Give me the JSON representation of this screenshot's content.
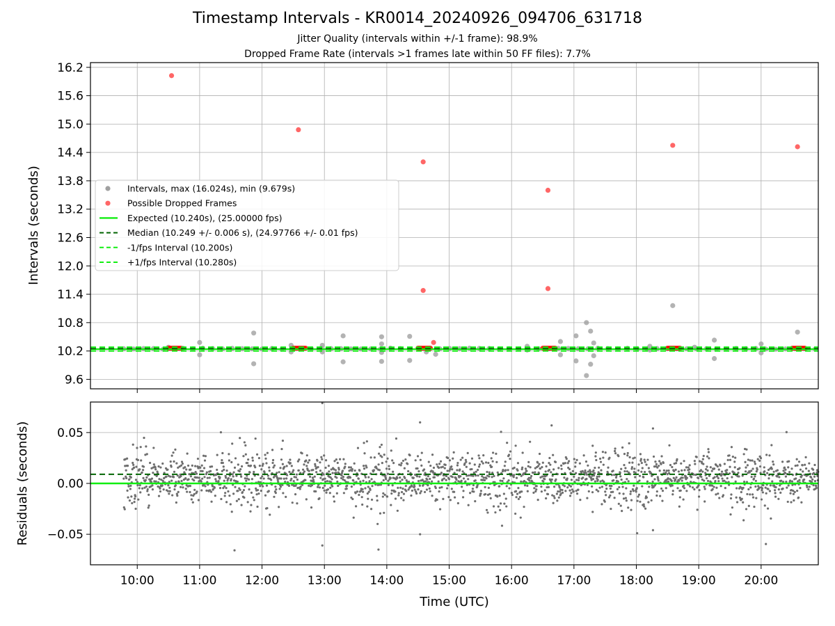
{
  "chart_data": [
    {
      "type": "scatter",
      "title": "Timestamp Intervals - KR0014_20240926_094706_631718",
      "subtitle_1": "Jitter Quality (intervals within +/-1 frame): 98.9%",
      "subtitle_2": "Dropped Frame Rate (intervals >1 frames late within 50 FF files): 7.7%",
      "xlabel": "",
      "ylabel": "Intervals (seconds)",
      "xlim": [
        "09:15",
        "20:55"
      ],
      "ylim": [
        9.4,
        16.3
      ],
      "y_ticks": [
        "9.6",
        "10.2",
        "10.8",
        "11.4",
        "12.0",
        "12.6",
        "13.2",
        "13.8",
        "14.4",
        "15.0",
        "15.6",
        "16.2"
      ],
      "grid": true,
      "legend_position": "center-left",
      "legend": [
        {
          "label": "Intervals, max (16.024s), min (9.679s)",
          "kind": "grey-marker"
        },
        {
          "label": "Possible Dropped Frames",
          "kind": "red-marker"
        },
        {
          "label": "Expected (10.240s), (25.00000 fps)",
          "kind": "green-solid"
        },
        {
          "label": "Median (10.249 +/- 0.006 s), (24.97766 +/- 0.01 fps)",
          "kind": "darkgreen-dashed"
        },
        {
          "label": "-1/fps Interval (10.200s)",
          "kind": "green-dashed"
        },
        {
          "label": "+1/fps Interval (10.280s)",
          "kind": "green-dashed"
        }
      ],
      "reference_lines": {
        "expected": 10.24,
        "median": 10.249,
        "minus_one_frame": 10.2,
        "plus_one_frame": 10.28
      },
      "series": [
        {
          "name": "Intervals, max (16.024s), min (9.679s)",
          "color": "#a0a0a0",
          "x_range": [
            "09:47",
            "20:55"
          ],
          "baseline": 10.249,
          "outliers": [
            {
              "x": "10:30",
              "y": 10.28
            },
            {
              "x": "11:00",
              "y": 10.38
            },
            {
              "x": "11:00",
              "y": 10.12
            },
            {
              "x": "11:52",
              "y": 10.58
            },
            {
              "x": "11:52",
              "y": 9.93
            },
            {
              "x": "12:28",
              "y": 10.32
            },
            {
              "x": "12:28",
              "y": 10.18
            },
            {
              "x": "12:58",
              "y": 10.32
            },
            {
              "x": "12:58",
              "y": 10.18
            },
            {
              "x": "13:18",
              "y": 10.52
            },
            {
              "x": "13:18",
              "y": 9.97
            },
            {
              "x": "13:55",
              "y": 10.5
            },
            {
              "x": "13:55",
              "y": 10.35
            },
            {
              "x": "13:55",
              "y": 10.17
            },
            {
              "x": "13:55",
              "y": 9.98
            },
            {
              "x": "14:22",
              "y": 10.51
            },
            {
              "x": "14:22",
              "y": 10.0
            },
            {
              "x": "14:38",
              "y": 10.18
            },
            {
              "x": "14:47",
              "y": 10.13
            },
            {
              "x": "16:15",
              "y": 10.3
            },
            {
              "x": "16:15",
              "y": 10.22
            },
            {
              "x": "16:47",
              "y": 10.4
            },
            {
              "x": "16:47",
              "y": 10.12
            },
            {
              "x": "17:02",
              "y": 10.52
            },
            {
              "x": "17:02",
              "y": 9.99
            },
            {
              "x": "17:12",
              "y": 10.8
            },
            {
              "x": "17:12",
              "y": 9.68
            },
            {
              "x": "17:16",
              "y": 10.62
            },
            {
              "x": "17:16",
              "y": 9.92
            },
            {
              "x": "17:19",
              "y": 10.37
            },
            {
              "x": "17:19",
              "y": 10.1
            },
            {
              "x": "18:13",
              "y": 10.3
            },
            {
              "x": "18:13",
              "y": 10.22
            },
            {
              "x": "18:35",
              "y": 11.16
            },
            {
              "x": "18:56",
              "y": 10.28
            },
            {
              "x": "19:15",
              "y": 10.43
            },
            {
              "x": "19:15",
              "y": 10.04
            },
            {
              "x": "20:00",
              "y": 10.35
            },
            {
              "x": "20:00",
              "y": 10.16
            },
            {
              "x": "20:35",
              "y": 10.6
            }
          ]
        },
        {
          "name": "Possible Dropped Frames",
          "color": "#ff0000",
          "x": [
            "10:33",
            "12:35",
            "14:35",
            "14:35",
            "14:45",
            "16:35",
            "16:35",
            "18:35",
            "20:35"
          ],
          "y": [
            16.024,
            14.88,
            14.2,
            11.48,
            10.38,
            13.6,
            11.52,
            14.55,
            14.52
          ],
          "clusters_at_baseline": [
            {
              "x_from": "10:30",
              "x_to": "10:43",
              "y": 10.26
            },
            {
              "x_from": "12:30",
              "x_to": "12:43",
              "y": 10.26
            },
            {
              "x_from": "14:30",
              "x_to": "14:43",
              "y": 10.26
            },
            {
              "x_from": "16:30",
              "x_to": "16:43",
              "y": 10.26
            },
            {
              "x_from": "18:30",
              "x_to": "18:43",
              "y": 10.26
            },
            {
              "x_from": "20:30",
              "x_to": "20:43",
              "y": 10.26
            }
          ]
        }
      ]
    },
    {
      "type": "scatter",
      "xlabel": "Time (UTC)",
      "ylabel": "Residuals (seconds)",
      "xlim": [
        "09:15",
        "20:55"
      ],
      "ylim": [
        -0.08,
        0.08
      ],
      "x_ticks": [
        "10:00",
        "11:00",
        "12:00",
        "13:00",
        "14:00",
        "15:00",
        "16:00",
        "17:00",
        "18:00",
        "19:00",
        "20:00"
      ],
      "y_ticks": [
        "−0.05",
        "0.00",
        "0.05"
      ],
      "y_tick_values": [
        -0.05,
        0.0,
        0.05
      ],
      "grid": true,
      "reference_lines": {
        "zero": 0.0,
        "median_offset": 0.009
      },
      "series": [
        {
          "name": "",
          "color": "#6e6e6e",
          "x_range": [
            "09:47",
            "20:55"
          ],
          "center": 0.005,
          "spread": 0.01,
          "outliers": [
            {
              "x": "12:20",
              "y": 0.042
            },
            {
              "x": "12:58",
              "y": 0.079
            },
            {
              "x": "12:58",
              "y": -0.061
            },
            {
              "x": "13:52",
              "y": -0.065
            },
            {
              "x": "14:32",
              "y": 0.06
            },
            {
              "x": "14:32",
              "y": -0.05
            },
            {
              "x": "18:16",
              "y": 0.054
            },
            {
              "x": "18:16",
              "y": -0.046
            },
            {
              "x": "13:55",
              "y": 0.038
            },
            {
              "x": "17:18",
              "y": 0.037
            },
            {
              "x": "17:18",
              "y": -0.028
            }
          ]
        }
      ]
    }
  ]
}
